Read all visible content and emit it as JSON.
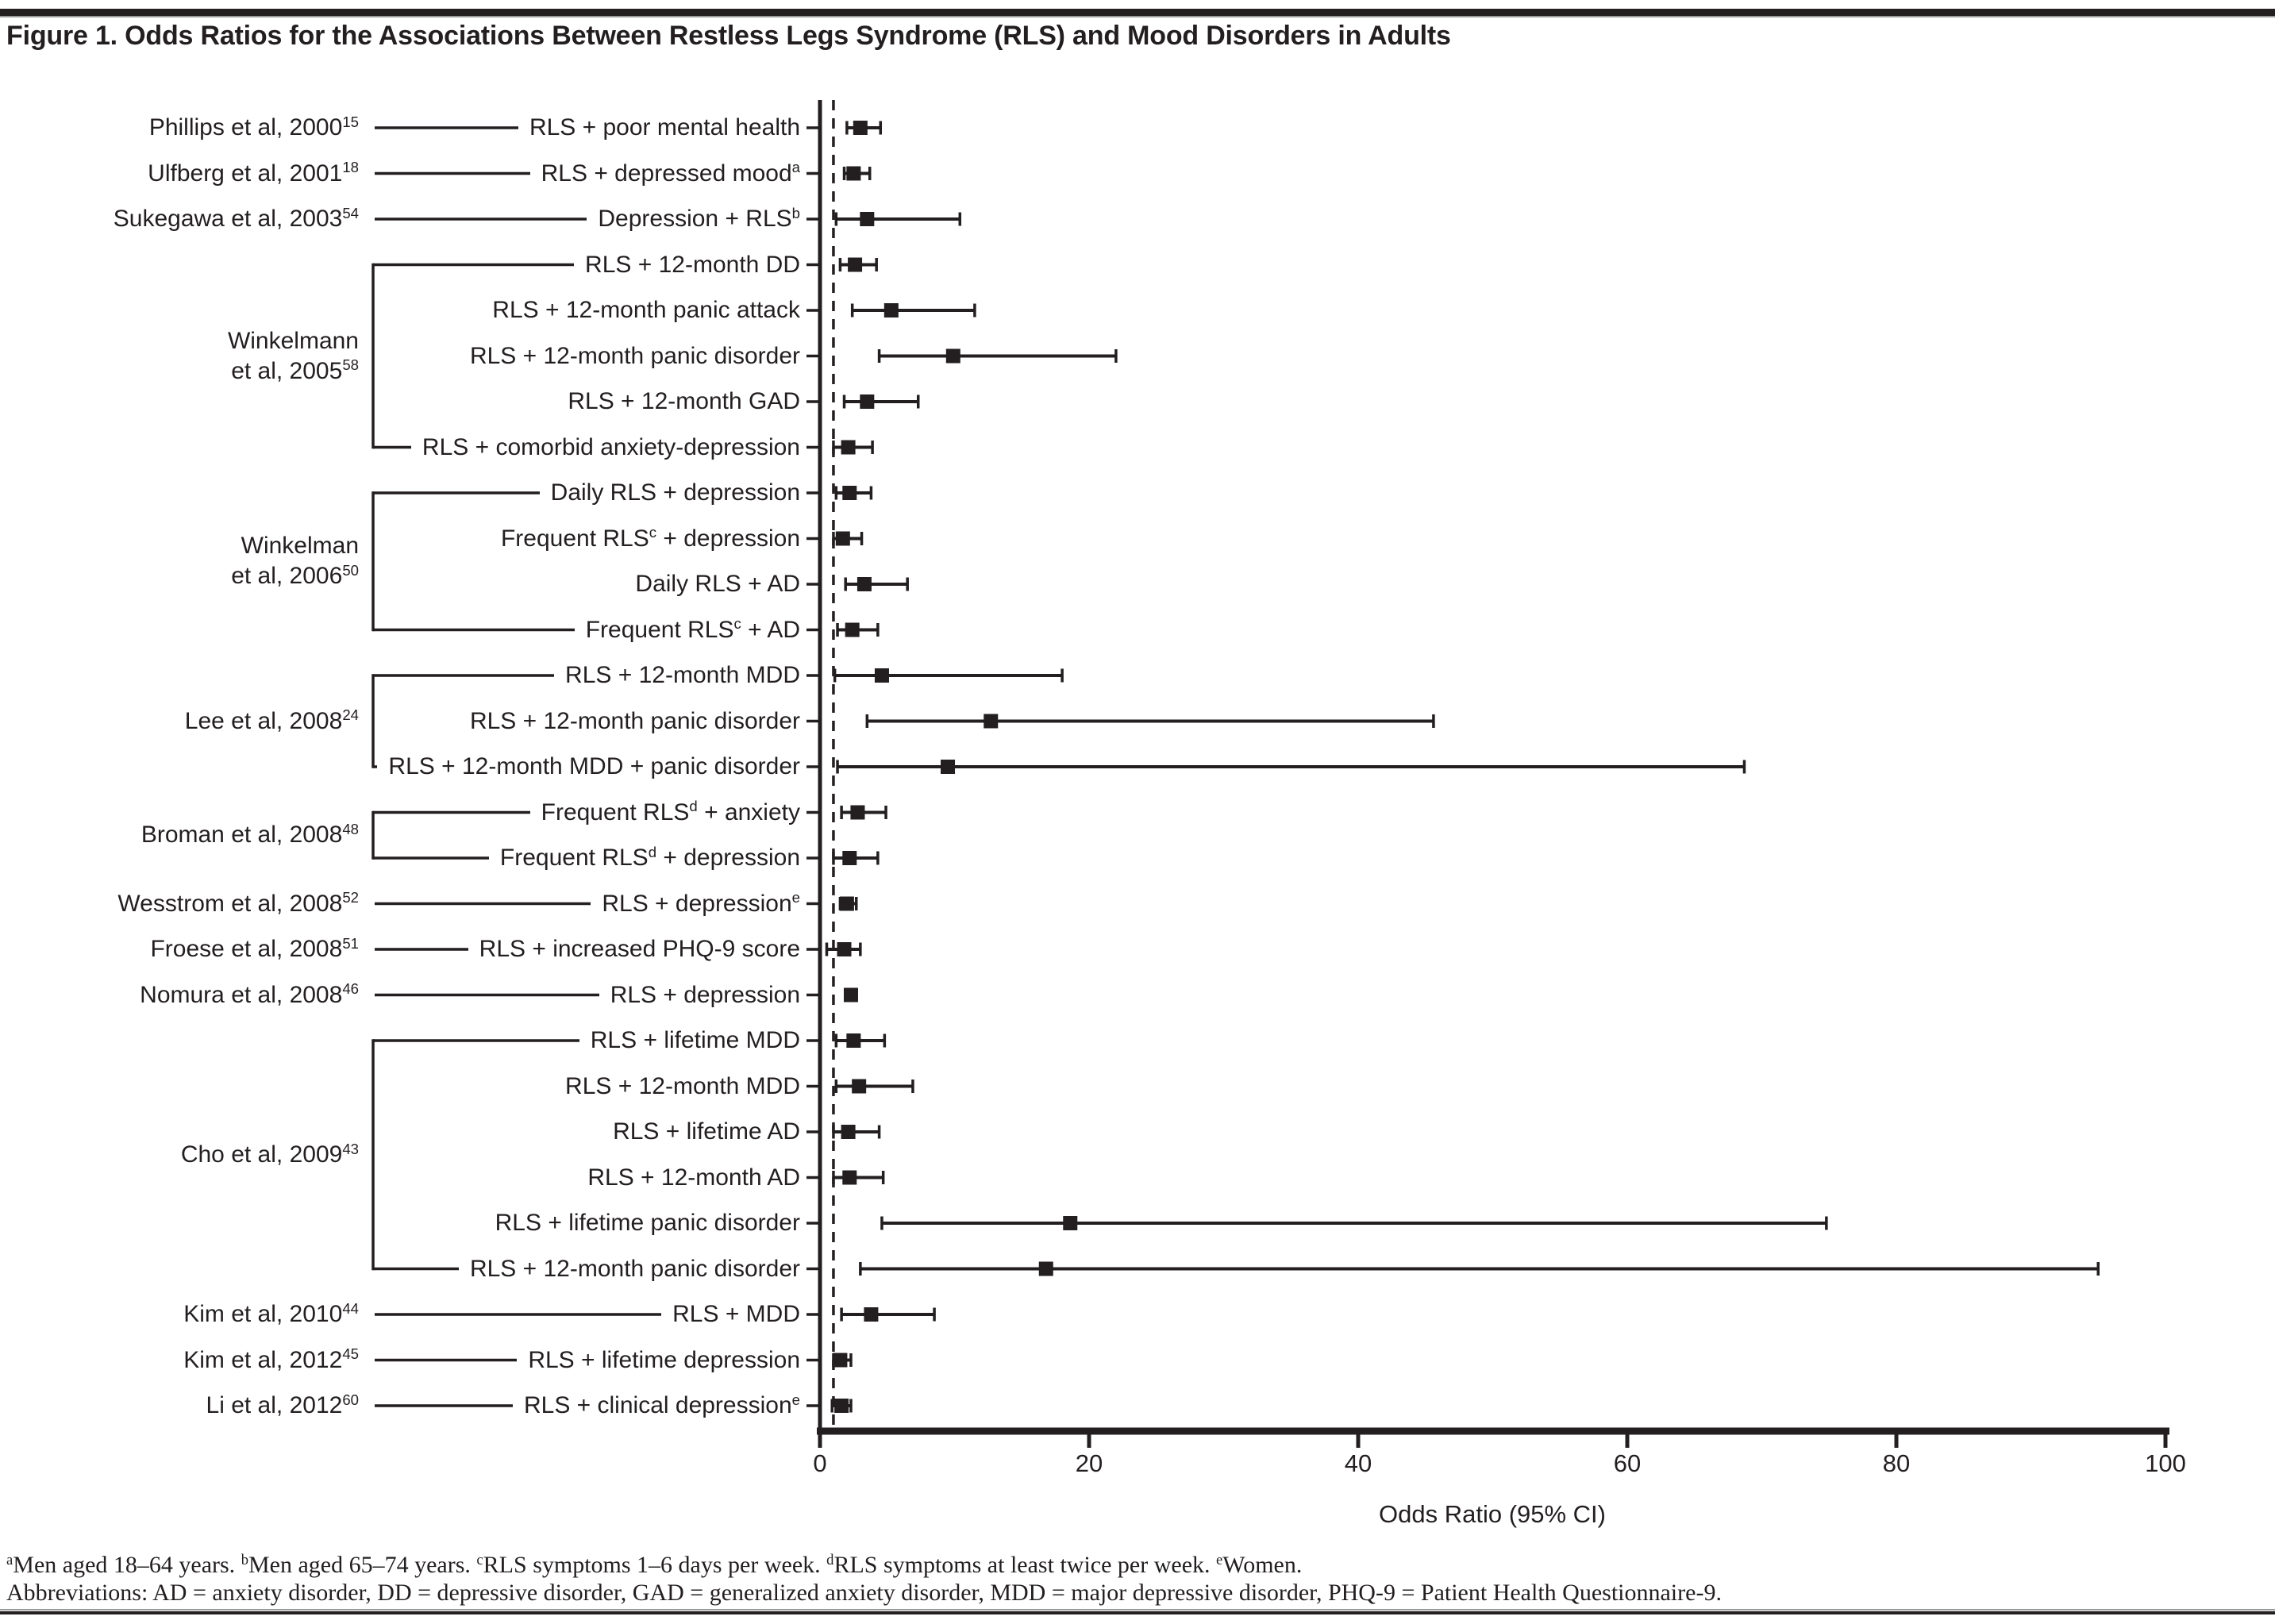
{
  "title": "Figure 1. Odds Ratios for the Associations Between Restless Legs Syndrome (RLS) and Mood Disorders in Adults",
  "colors": {
    "ink": "#231f20",
    "rule_gray": "#9b9b9b",
    "background": "#ffffff"
  },
  "chart_data": {
    "type": "forest",
    "title": "Figure 1. Odds Ratios for the Associations Between Restless Legs Syndrome (RLS) and Mood Disorders in Adults",
    "xlabel": "Odds Ratio (95% CI)",
    "xlim": [
      0,
      100
    ],
    "x_ticks": [
      0,
      20,
      40,
      60,
      80,
      100
    ],
    "reference_line_or": 1,
    "grid": false,
    "groups": [
      {
        "study_lines": [
          [
            "Phillips et al, 2000",
            "^15"
          ]
        ],
        "rows": [
          {
            "label_parts": [
              "RLS + poor mental health"
            ],
            "or": 3.0,
            "ci_low": 2.0,
            "ci_high": 4.5
          }
        ]
      },
      {
        "study_lines": [
          [
            "Ulfberg et al, 2001",
            "^18"
          ]
        ],
        "rows": [
          {
            "label_parts": [
              "RLS + depressed mood",
              "^a"
            ],
            "or": 2.5,
            "ci_low": 1.8,
            "ci_high": 3.7
          }
        ]
      },
      {
        "study_lines": [
          [
            "Sukegawa et al, 2003",
            "^54"
          ]
        ],
        "rows": [
          {
            "label_parts": [
              "Depression + RLS",
              "^b"
            ],
            "or": 3.5,
            "ci_low": 1.2,
            "ci_high": 10.4
          }
        ]
      },
      {
        "study_lines": [
          [
            "Winkelmann"
          ],
          [
            "et al, 2005",
            "^58"
          ]
        ],
        "rows": [
          {
            "label_parts": [
              "RLS + 12-month DD"
            ],
            "or": 2.6,
            "ci_low": 1.5,
            "ci_high": 4.2
          },
          {
            "label_parts": [
              "RLS + 12-month panic attack"
            ],
            "or": 5.3,
            "ci_low": 2.4,
            "ci_high": 11.5
          },
          {
            "label_parts": [
              "RLS + 12-month panic disorder"
            ],
            "or": 9.9,
            "ci_low": 4.4,
            "ci_high": 22.0
          },
          {
            "label_parts": [
              "RLS + 12-month GAD"
            ],
            "or": 3.5,
            "ci_low": 1.8,
            "ci_high": 7.3
          },
          {
            "label_parts": [
              "RLS + comorbid anxiety-depression"
            ],
            "or": 2.1,
            "ci_low": 1.0,
            "ci_high": 3.9
          }
        ]
      },
      {
        "study_lines": [
          [
            "Winkelman"
          ],
          [
            "et al, 2006",
            "^50"
          ]
        ],
        "rows": [
          {
            "label_parts": [
              "Daily RLS + depression"
            ],
            "or": 2.2,
            "ci_low": 1.2,
            "ci_high": 3.8
          },
          {
            "label_parts": [
              "Frequent RLS",
              "^c",
              " + depression"
            ],
            "or": 1.7,
            "ci_low": 1.0,
            "ci_high": 3.1
          },
          {
            "label_parts": [
              "Daily RLS + AD"
            ],
            "or": 3.3,
            "ci_low": 1.9,
            "ci_high": 6.5
          },
          {
            "label_parts": [
              "Frequent RLS",
              "^c",
              " + AD"
            ],
            "or": 2.4,
            "ci_low": 1.3,
            "ci_high": 4.3
          }
        ]
      },
      {
        "study_lines": [
          [
            "Lee et al, 2008",
            "^24"
          ]
        ],
        "rows": [
          {
            "label_parts": [
              "RLS + 12-month MDD"
            ],
            "or": 4.6,
            "ci_low": 1.1,
            "ci_high": 18.0
          },
          {
            "label_parts": [
              "RLS + 12-month panic disorder"
            ],
            "or": 12.7,
            "ci_low": 3.5,
            "ci_high": 45.6
          },
          {
            "label_parts": [
              "RLS + 12-month MDD + panic disorder"
            ],
            "or": 9.5,
            "ci_low": 1.3,
            "ci_high": 68.7
          }
        ]
      },
      {
        "study_lines": [
          [
            "Broman et al, 2008",
            "^48"
          ]
        ],
        "rows": [
          {
            "label_parts": [
              "Frequent RLS",
              "^d",
              " + anxiety"
            ],
            "or": 2.8,
            "ci_low": 1.6,
            "ci_high": 4.9
          },
          {
            "label_parts": [
              "Frequent RLS",
              "^d",
              " + depression"
            ],
            "or": 2.2,
            "ci_low": 1.0,
            "ci_high": 4.3
          }
        ]
      },
      {
        "study_lines": [
          [
            "Wesstrom et al, 2008",
            "^52"
          ]
        ],
        "rows": [
          {
            "label_parts": [
              "RLS + depression",
              "^e"
            ],
            "or": 2.0,
            "ci_low": 1.5,
            "ci_high": 2.7
          }
        ]
      },
      {
        "study_lines": [
          [
            "Froese et al, 2008",
            "^51"
          ]
        ],
        "rows": [
          {
            "label_parts": [
              "RLS + increased PHQ-9 score"
            ],
            "or": 1.8,
            "ci_low": 0.5,
            "ci_high": 3.0
          }
        ]
      },
      {
        "study_lines": [
          [
            "Nomura et al, 2008",
            "^46"
          ]
        ],
        "rows": [
          {
            "label_parts": [
              "RLS + depression"
            ],
            "or": 2.3,
            "ci_low": 1.9,
            "ci_high": 2.7
          }
        ]
      },
      {
        "study_lines": [
          [
            "Cho et al, 2009",
            "^43"
          ]
        ],
        "rows": [
          {
            "label_parts": [
              "RLS + lifetime MDD"
            ],
            "or": 2.5,
            "ci_low": 1.2,
            "ci_high": 4.8
          },
          {
            "label_parts": [
              "RLS + 12-month MDD"
            ],
            "or": 2.9,
            "ci_low": 1.2,
            "ci_high": 6.9
          },
          {
            "label_parts": [
              "RLS + lifetime AD"
            ],
            "or": 2.1,
            "ci_low": 1.0,
            "ci_high": 4.4
          },
          {
            "label_parts": [
              "RLS + 12-month AD"
            ],
            "or": 2.2,
            "ci_low": 1.0,
            "ci_high": 4.7
          },
          {
            "label_parts": [
              "RLS + lifetime panic disorder"
            ],
            "or": 18.6,
            "ci_low": 4.6,
            "ci_high": 74.8
          },
          {
            "label_parts": [
              "RLS + 12-month panic disorder"
            ],
            "or": 16.8,
            "ci_low": 3.0,
            "ci_high": 95.0
          }
        ]
      },
      {
        "study_lines": [
          [
            "Kim et al, 2010",
            "^44"
          ]
        ],
        "rows": [
          {
            "label_parts": [
              "RLS + MDD"
            ],
            "or": 3.8,
            "ci_low": 1.6,
            "ci_high": 8.5
          }
        ]
      },
      {
        "study_lines": [
          [
            "Kim et al, 2012",
            "^45"
          ]
        ],
        "rows": [
          {
            "label_parts": [
              "RLS + lifetime depression"
            ],
            "or": 1.5,
            "ci_low": 1.0,
            "ci_high": 2.3
          }
        ]
      },
      {
        "study_lines": [
          [
            "Li et al, 2012",
            "^60"
          ]
        ],
        "rows": [
          {
            "label_parts": [
              "RLS + clinical depression",
              "^e"
            ],
            "or": 1.6,
            "ci_low": 0.9,
            "ci_high": 2.3
          }
        ]
      }
    ]
  },
  "footnotes": {
    "line1_parts": [
      "^a",
      "Men aged 18–64 years.  ",
      "^b",
      "Men aged 65–74 years.  ",
      "^c",
      "RLS symptoms 1–6 days per week.  ",
      "^d",
      "RLS symptoms at least twice per week.  ",
      "^e",
      "Women."
    ],
    "line2": "Abbreviations: AD = anxiety disorder, DD = depressive disorder, GAD = generalized anxiety disorder, MDD = major depressive disorder, PHQ-9 = Patient Health Questionnaire-9."
  }
}
